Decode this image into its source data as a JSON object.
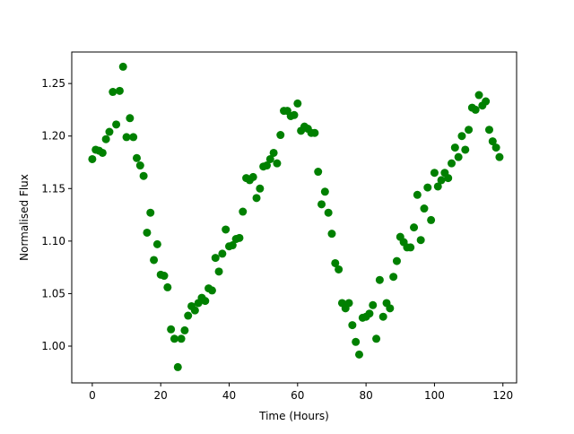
{
  "chart_data": {
    "type": "scatter",
    "title": "",
    "xlabel": "Time (Hours)",
    "ylabel": "Normalised Flux",
    "xlim": [
      -6,
      124
    ],
    "ylim": [
      0.965,
      1.28
    ],
    "xticks": [
      0,
      20,
      40,
      60,
      80,
      100,
      120
    ],
    "yticks": [
      1.0,
      1.05,
      1.1,
      1.15,
      1.2,
      1.25
    ],
    "xtick_labels": [
      "0",
      "20",
      "40",
      "60",
      "80",
      "100",
      "120"
    ],
    "ytick_labels": [
      "1.00",
      "1.05",
      "1.10",
      "1.15",
      "1.20",
      "1.25"
    ],
    "grid": false,
    "marker_color": "#008000",
    "x": [
      0,
      1,
      2,
      3,
      4,
      5,
      6,
      7,
      8,
      9,
      10,
      11,
      12,
      13,
      14,
      15,
      16,
      17,
      18,
      19,
      20,
      21,
      22,
      23,
      24,
      25,
      26,
      27,
      28,
      29,
      30,
      31,
      32,
      33,
      34,
      35,
      36,
      37,
      38,
      39,
      40,
      41,
      42,
      43,
      44,
      45,
      46,
      47,
      48,
      49,
      50,
      51,
      52,
      53,
      54,
      55,
      56,
      57,
      58,
      59,
      60,
      61,
      62,
      63,
      64,
      65,
      66,
      67,
      68,
      69,
      70,
      71,
      72,
      73,
      74,
      75,
      76,
      77,
      78,
      79,
      80,
      81,
      82,
      83,
      84,
      85,
      86,
      87,
      88,
      89,
      90,
      91,
      92,
      93,
      94,
      95,
      96,
      97,
      98,
      99,
      100,
      101,
      102,
      103,
      104,
      105,
      106,
      107,
      108,
      109,
      110,
      111,
      112,
      113,
      114,
      115,
      116,
      117,
      118,
      119
    ],
    "y": [
      1.178,
      1.187,
      1.186,
      1.184,
      1.197,
      1.204,
      1.242,
      1.211,
      1.243,
      1.266,
      1.199,
      1.217,
      1.199,
      1.179,
      1.172,
      1.162,
      1.108,
      1.127,
      1.082,
      1.097,
      1.068,
      1.067,
      1.056,
      1.016,
      1.007,
      0.98,
      1.007,
      1.015,
      1.029,
      1.038,
      1.034,
      1.041,
      1.046,
      1.043,
      1.055,
      1.053,
      1.084,
      1.071,
      1.088,
      1.111,
      1.095,
      1.096,
      1.102,
      1.103,
      1.128,
      1.16,
      1.158,
      1.161,
      1.141,
      1.15,
      1.171,
      1.172,
      1.178,
      1.184,
      1.174,
      1.201,
      1.224,
      1.224,
      1.219,
      1.22,
      1.231,
      1.205,
      1.209,
      1.207,
      1.203,
      1.203,
      1.166,
      1.135,
      1.147,
      1.127,
      1.107,
      1.079,
      1.073,
      1.041,
      1.036,
      1.041,
      1.02,
      1.004,
      0.992,
      1.027,
      1.028,
      1.031,
      1.039,
      1.007,
      1.063,
      1.028,
      1.041,
      1.036,
      1.066,
      1.081,
      1.104,
      1.099,
      1.094,
      1.094,
      1.113,
      1.144,
      1.101,
      1.131,
      1.151,
      1.12,
      1.165,
      1.152,
      1.158,
      1.165,
      1.16,
      1.174,
      1.189,
      1.18,
      1.2,
      1.187,
      1.206,
      1.227,
      1.225,
      1.239,
      1.229,
      1.233,
      1.206,
      1.195,
      1.189,
      1.18
    ]
  }
}
